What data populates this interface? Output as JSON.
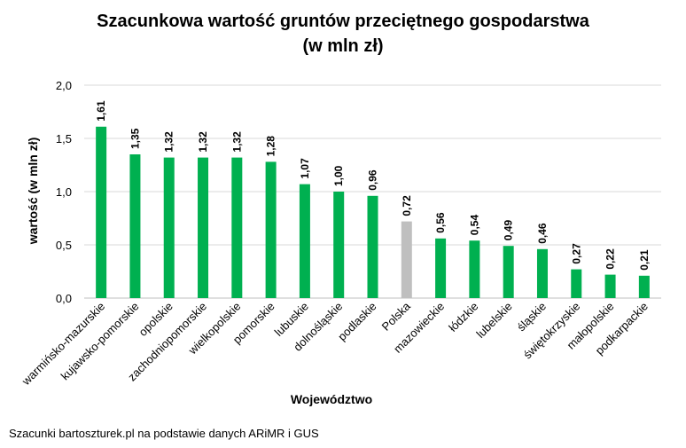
{
  "source_note": "Szacunki bartoszturek.pl na podstawie danych ARiMR i GUS",
  "chart_data": {
    "type": "bar",
    "title_line1": "Szacunkowa wartość gruntów przeciętnego gospodarstwa",
    "title_line2": "(w mln zł)",
    "xlabel": "Województwo",
    "ylabel": "wartość (w mln zł)",
    "ylim": [
      0,
      2
    ],
    "yticks": [
      "0,0",
      "0,5",
      "1,0",
      "1,5",
      "2,0"
    ],
    "grid": true,
    "categories": [
      "warmińsko-mazurskie",
      "kujawsko-pomorskie",
      "opolskie",
      "zachodniopomorskie",
      "wielkopolskie",
      "pomorskie",
      "lubuskie",
      "dolnośląskie",
      "podlaskie",
      "Polska",
      "mazowieckie",
      "łódzkie",
      "lubelskie",
      "śląskie",
      "świętokrzyskie",
      "małopolskie",
      "podkarpackie"
    ],
    "values": [
      1.61,
      1.35,
      1.32,
      1.32,
      1.32,
      1.28,
      1.07,
      1.0,
      0.96,
      0.72,
      0.56,
      0.54,
      0.49,
      0.46,
      0.27,
      0.22,
      0.21
    ],
    "labels": [
      "1,61",
      "1,35",
      "1,32",
      "1,32",
      "1,32",
      "1,28",
      "1,07",
      "1,00",
      "0,96",
      "0,72",
      "0,56",
      "0,54",
      "0,49",
      "0,46",
      "0,27",
      "0,22",
      "0,21"
    ],
    "colors": {
      "bar": "#00b050",
      "highlight": "#bfbfbf",
      "grid": "#d9d9d9"
    },
    "highlight_category": "Polska"
  }
}
